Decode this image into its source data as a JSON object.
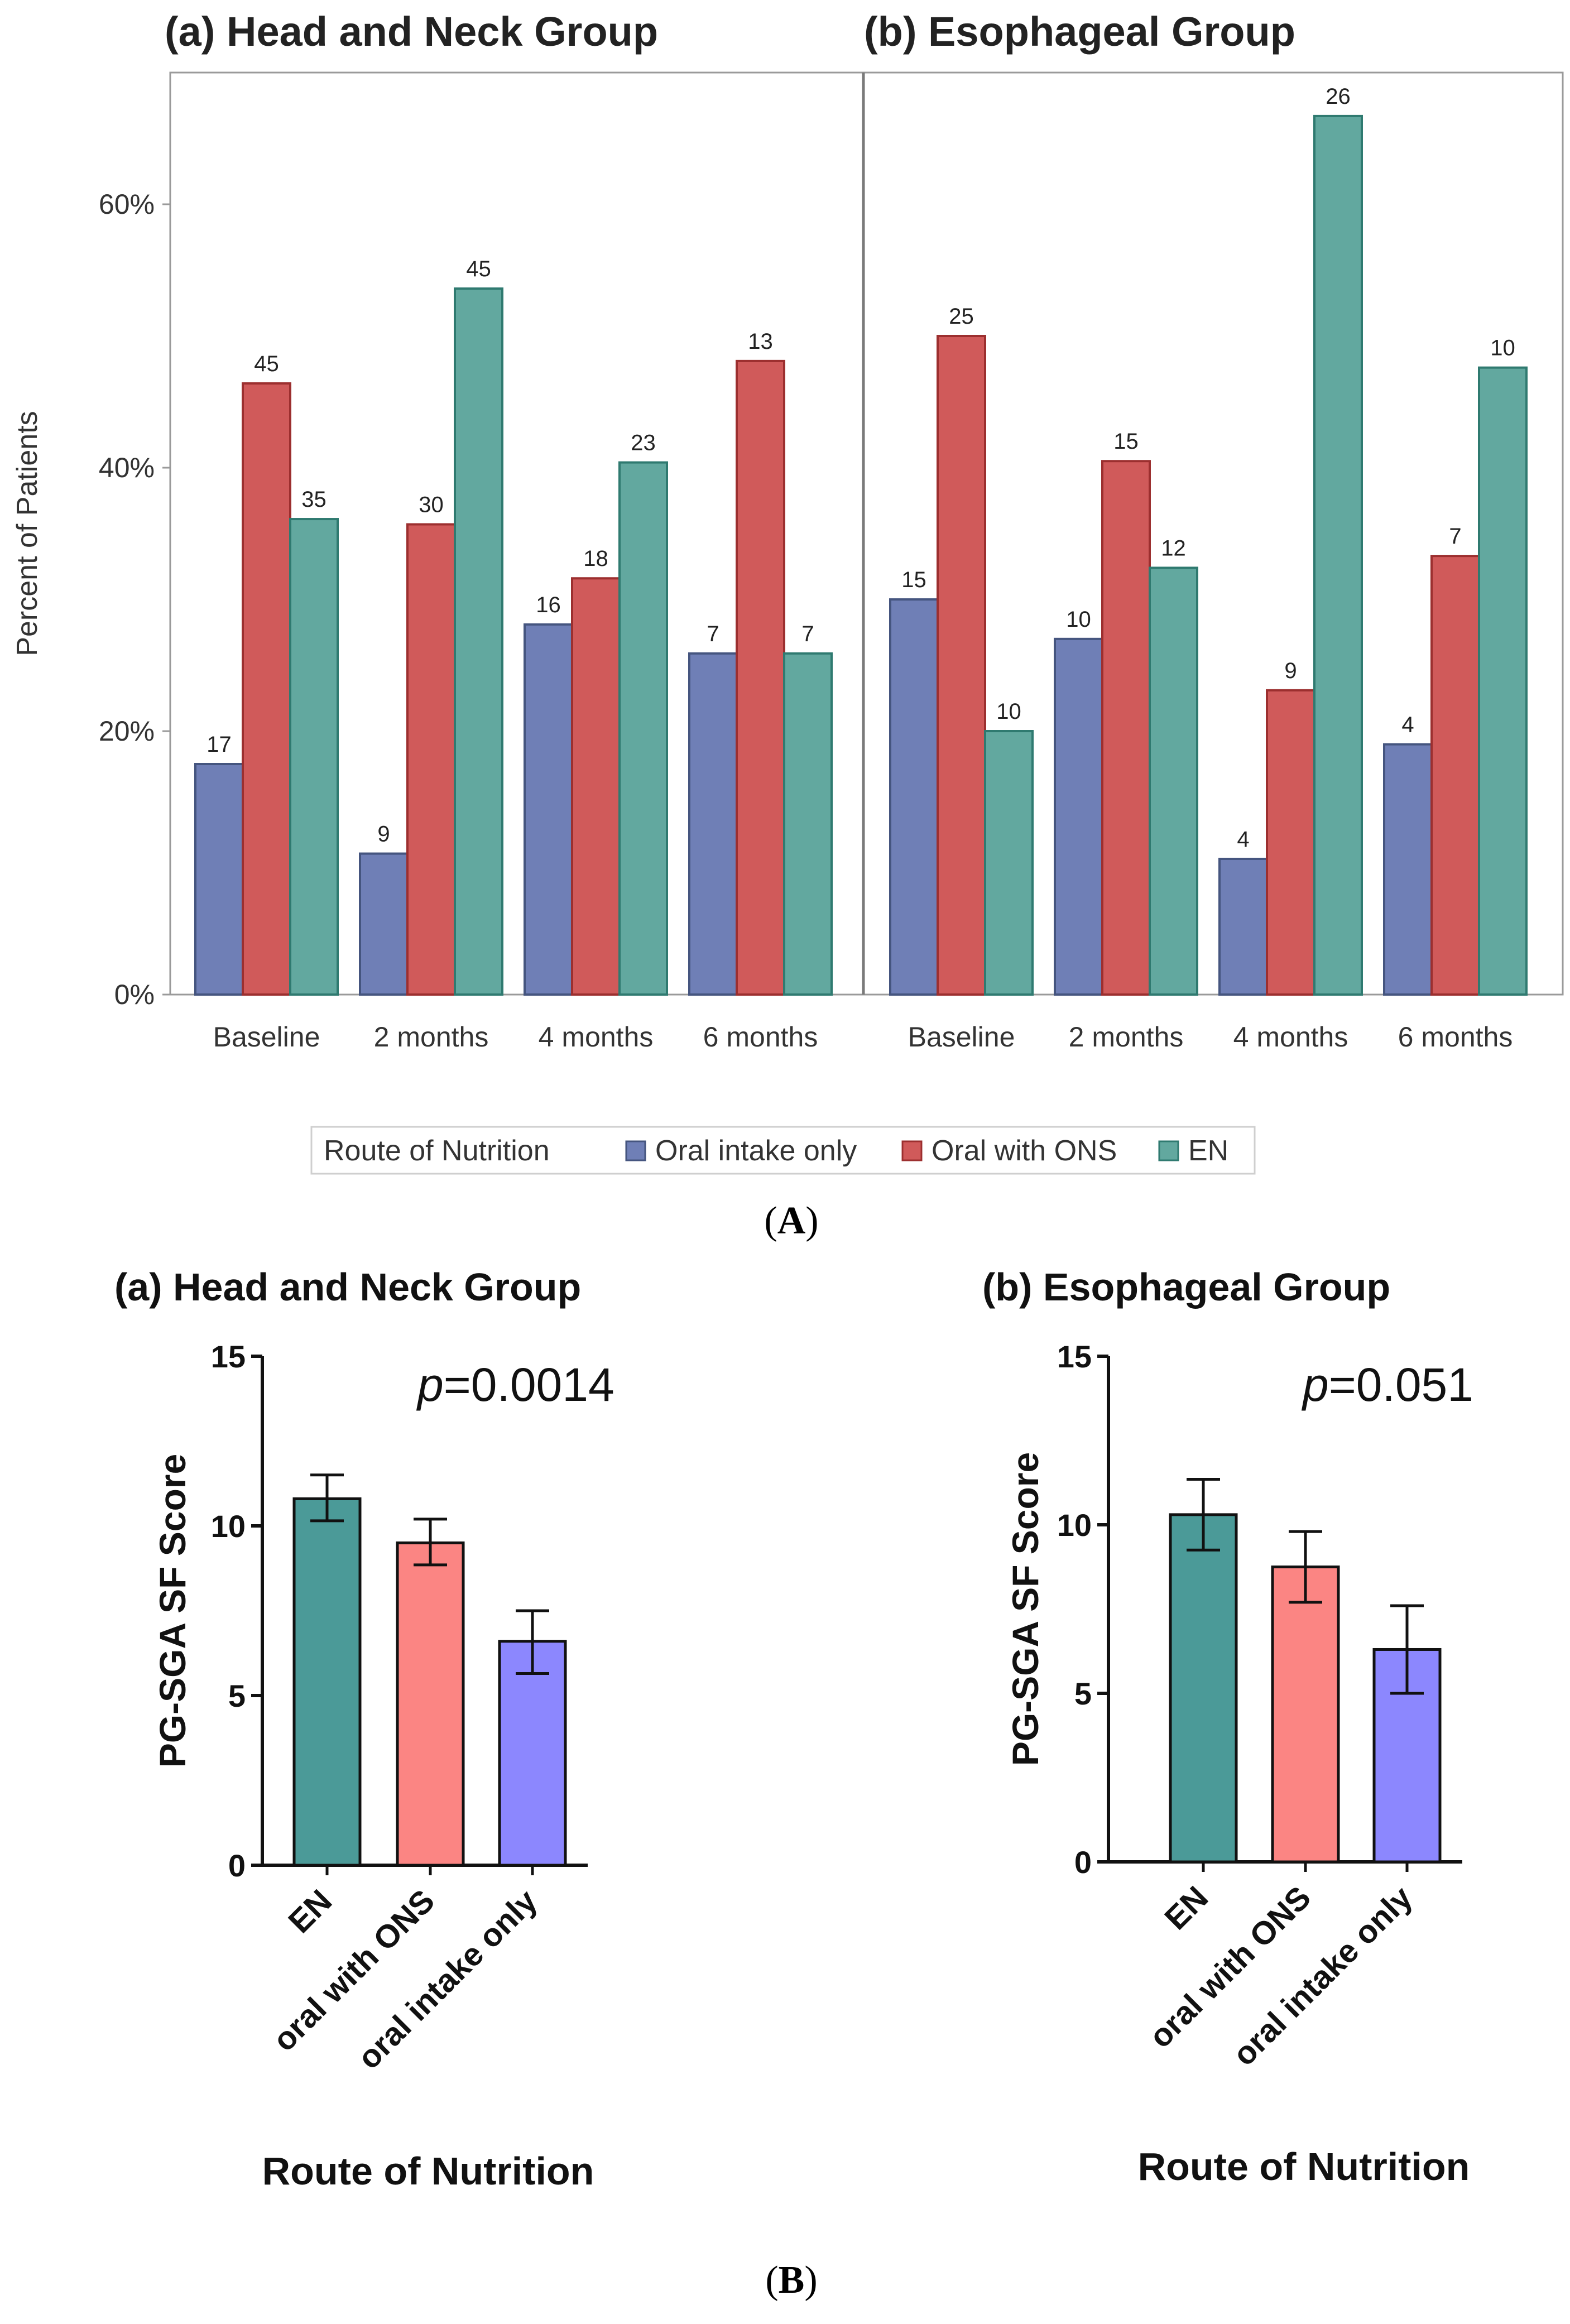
{
  "chart_data": [
    {
      "type": "bar",
      "figure": "A",
      "panel_label": "A",
      "ylabel": "Percent of Patients",
      "ylim": [
        0,
        0.7
      ],
      "yticks": [
        0,
        0.2,
        0.4,
        0.6
      ],
      "ytick_labels": [
        "0%",
        "20%",
        "40%",
        "60%"
      ],
      "legend_title": "Route of Nutrition",
      "legend_position": "bottom",
      "series_names": [
        "Oral intake only",
        "Oral with ONS",
        "EN"
      ],
      "series_colors": [
        "#6f7fb6",
        "#d05a5a",
        "#62a89f"
      ],
      "series_edge_colors": [
        "#45557f",
        "#9c2f2f",
        "#2f7a70"
      ],
      "panels": [
        {
          "title": "(a) Head and Neck Group",
          "categories": [
            "Baseline",
            "2 months",
            "4 months",
            "6 months"
          ],
          "series": [
            {
              "name": "Oral intake only",
              "values": [
                0.175,
                0.107,
                0.281,
                0.259
              ],
              "counts": [
                "17",
                "9",
                "16",
                "7"
              ]
            },
            {
              "name": "Oral with ONS",
              "values": [
                0.464,
                0.357,
                0.316,
                0.481
              ],
              "counts": [
                "45",
                "30",
                "18",
                "13"
              ]
            },
            {
              "name": "EN",
              "values": [
                0.361,
                0.536,
                0.404,
                0.259
              ],
              "counts": [
                "35",
                "45",
                "23",
                "7"
              ]
            }
          ]
        },
        {
          "title": "(b) Esophageal Group",
          "categories": [
            "Baseline",
            "2 months",
            "4 months",
            "6 months"
          ],
          "series": [
            {
              "name": "Oral intake only",
              "values": [
                0.3,
                0.27,
                0.103,
                0.19
              ],
              "counts": [
                "15",
                "10",
                "4",
                "4"
              ]
            },
            {
              "name": "Oral with ONS",
              "values": [
                0.5,
                0.405,
                0.231,
                0.333
              ],
              "counts": [
                "25",
                "15",
                "9",
                "7"
              ]
            },
            {
              "name": "EN",
              "values": [
                0.2,
                0.324,
                0.667,
                0.476
              ],
              "counts": [
                "10",
                "12",
                "26",
                "10"
              ]
            }
          ]
        }
      ]
    },
    {
      "type": "bar",
      "figure": "B",
      "panel_label": "B",
      "panels": [
        {
          "title": "(a) Head and Neck Group",
          "ylabel": "PG-SGA SF Score",
          "xlabel": "Route of Nutrition",
          "ylim": [
            0,
            15
          ],
          "yticks": [
            "0",
            "5",
            "10",
            "15"
          ],
          "categories": [
            "EN",
            "oral with ONS",
            "oral intake only"
          ],
          "values": [
            10.8,
            9.5,
            6.6
          ],
          "err_low": [
            10.15,
            8.85,
            5.65
          ],
          "err_high": [
            11.5,
            10.2,
            7.5
          ],
          "colors": [
            "#4b9a98",
            "#fb8583",
            "#8c87fe"
          ],
          "p_prefix": "p",
          "p_value": "=0.0014"
        },
        {
          "title": "(b) Esophageal Group",
          "ylabel": "PG-SGA SF Score",
          "xlabel": "Route of Nutrition",
          "ylim": [
            0,
            15
          ],
          "yticks": [
            "0",
            "5",
            "10",
            "15"
          ],
          "categories": [
            "EN",
            "oral with ONS",
            "oral intake only"
          ],
          "values": [
            10.3,
            8.75,
            6.3
          ],
          "err_low": [
            9.25,
            7.7,
            5.0
          ],
          "err_high": [
            11.35,
            9.8,
            7.6
          ],
          "colors": [
            "#4b9a98",
            "#fb8583",
            "#8c87fe"
          ],
          "p_prefix": "p",
          "p_value": "=0.051"
        }
      ]
    }
  ]
}
